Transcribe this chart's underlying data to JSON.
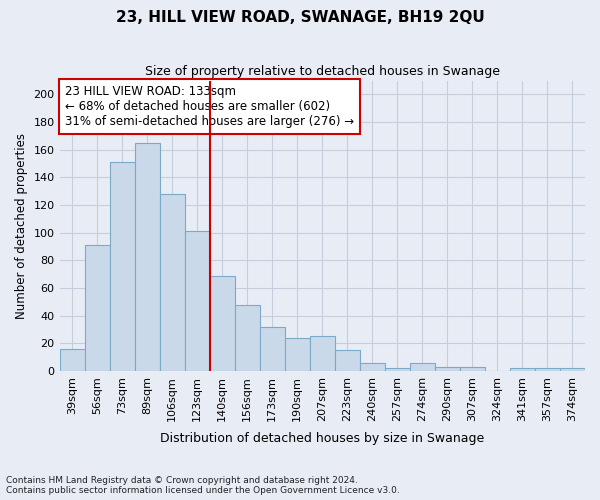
{
  "title": "23, HILL VIEW ROAD, SWANAGE, BH19 2QU",
  "subtitle": "Size of property relative to detached houses in Swanage",
  "xlabel": "Distribution of detached houses by size in Swanage",
  "ylabel": "Number of detached properties",
  "categories": [
    "39sqm",
    "56sqm",
    "73sqm",
    "89sqm",
    "106sqm",
    "123sqm",
    "140sqm",
    "156sqm",
    "173sqm",
    "190sqm",
    "207sqm",
    "223sqm",
    "240sqm",
    "257sqm",
    "274sqm",
    "290sqm",
    "307sqm",
    "324sqm",
    "341sqm",
    "357sqm",
    "374sqm"
  ],
  "values": [
    16,
    91,
    151,
    165,
    128,
    101,
    69,
    48,
    32,
    24,
    25,
    15,
    6,
    2,
    6,
    3,
    3,
    0,
    2,
    2,
    2
  ],
  "bar_color": "#cad9ea",
  "bar_edge_color": "#7aaac8",
  "vline_x_index": 6,
  "vline_color": "#cc0000",
  "annotation_text": "23 HILL VIEW ROAD: 133sqm\n← 68% of detached houses are smaller (602)\n31% of semi-detached houses are larger (276) →",
  "annotation_box_facecolor": "#ffffff",
  "annotation_box_edgecolor": "#cc0000",
  "ylim": [
    0,
    210
  ],
  "yticks": [
    0,
    20,
    40,
    60,
    80,
    100,
    120,
    140,
    160,
    180,
    200
  ],
  "footer_text": "Contains HM Land Registry data © Crown copyright and database right 2024.\nContains public sector information licensed under the Open Government Licence v3.0.",
  "fig_facecolor": "#e8edf5",
  "axes_facecolor": "#e8edf5",
  "grid_color": "#c5cedd",
  "title_fontsize": 11,
  "subtitle_fontsize": 9,
  "tick_fontsize": 8,
  "ylabel_fontsize": 8.5,
  "xlabel_fontsize": 9,
  "annotation_fontsize": 8.5,
  "footer_fontsize": 6.5
}
